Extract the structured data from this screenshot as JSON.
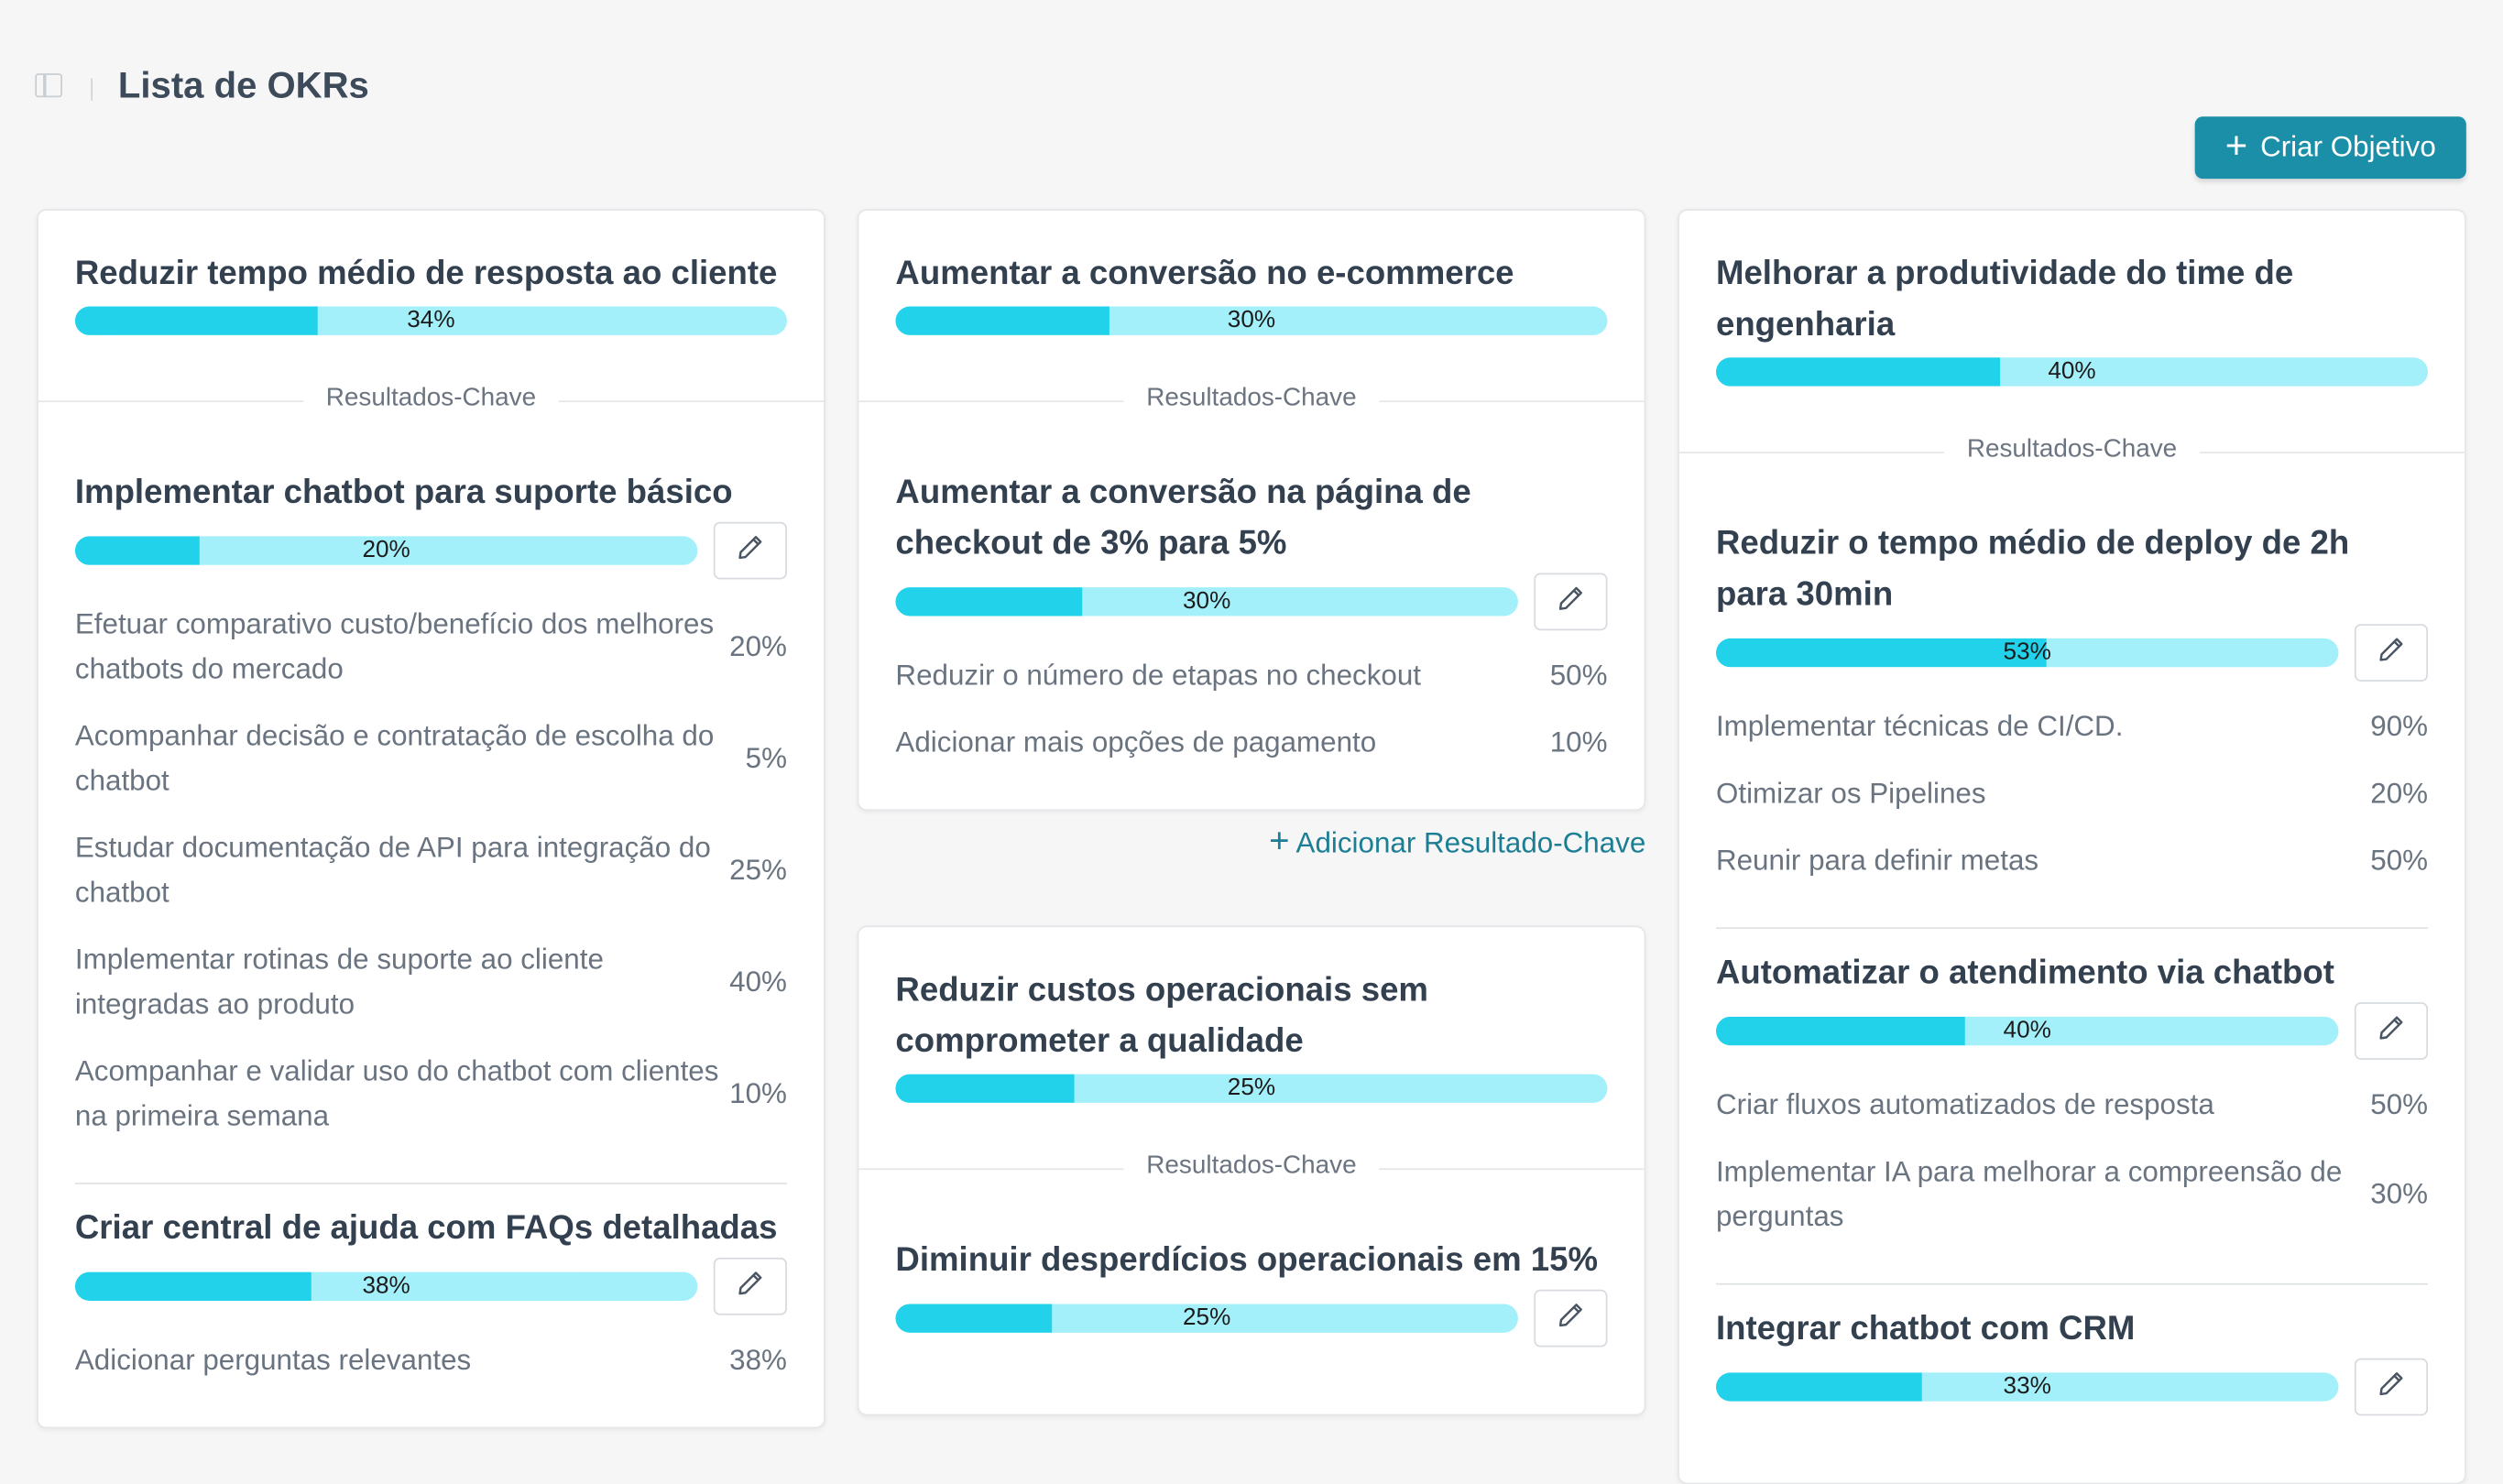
{
  "header": {
    "title": "Lista de OKRs",
    "create_button": "Criar Objetivo"
  },
  "key_results_label": "Resultados-Chave",
  "add_kr_label": "Adicionar Resultado-Chave",
  "colors": {
    "accent": "#1b8fa7",
    "bar_fill": "#22d2ea",
    "bar_track": "#a4f0fa"
  },
  "columns": [
    {
      "objectives": [
        {
          "title": "Reduzir tempo médio de resposta ao cliente",
          "progress": 34,
          "progress_label": "34%",
          "key_results": [
            {
              "title": "Implementar chatbot para suporte básico",
              "progress": 20,
              "progress_label": "20%",
              "tasks": [
                {
                  "text": "Efetuar comparativo custo/benefício dos melhores chatbots do mercado",
                  "percent": "20%"
                },
                {
                  "text": "Acompanhar decisão e contratação de escolha do chatbot",
                  "percent": "5%"
                },
                {
                  "text": "Estudar documentação de API para integração do chatbot",
                  "percent": "25%"
                },
                {
                  "text": "Implementar rotinas de suporte ao cliente integradas ao produto",
                  "percent": "40%"
                },
                {
                  "text": "Acompanhar e validar uso do chatbot com clientes na primeira semana",
                  "percent": "10%"
                }
              ]
            },
            {
              "title": "Criar central de ajuda com FAQs detalhadas",
              "progress": 38,
              "progress_label": "38%",
              "tasks": [
                {
                  "text": "Adicionar perguntas relevantes",
                  "percent": "38%"
                }
              ]
            }
          ]
        }
      ]
    },
    {
      "objectives": [
        {
          "title": "Aumentar a conversão no e-commerce",
          "progress": 30,
          "progress_label": "30%",
          "key_results": [
            {
              "title": "Aumentar a conversão na página de checkout de 3% para 5%",
              "progress": 30,
              "progress_label": "30%",
              "tasks": [
                {
                  "text": "Reduzir o número de etapas no checkout",
                  "percent": "50%"
                },
                {
                  "text": "Adicionar mais opções de pagamento",
                  "percent": "10%"
                }
              ]
            }
          ]
        },
        {
          "title": "Reduzir custos operacionais sem comprometer a qualidade",
          "progress": 25,
          "progress_label": "25%",
          "key_results": [
            {
              "title": "Diminuir desperdícios operacionais em 15%",
              "progress": 25,
              "progress_label": "25%",
              "tasks": []
            }
          ]
        }
      ]
    },
    {
      "objectives": [
        {
          "title": "Melhorar a produtividade do time de engenharia",
          "progress": 40,
          "progress_label": "40%",
          "key_results": [
            {
              "title": "Reduzir o tempo médio de deploy de 2h para 30min",
              "progress": 53,
              "progress_label": "53%",
              "tasks": [
                {
                  "text": "Implementar técnicas de CI/CD.",
                  "percent": "90%"
                },
                {
                  "text": "Otimizar os Pipelines",
                  "percent": "20%"
                },
                {
                  "text": "Reunir para definir metas",
                  "percent": "50%"
                }
              ]
            },
            {
              "title": "Automatizar o atendimento via chatbot",
              "progress": 40,
              "progress_label": "40%",
              "tasks": [
                {
                  "text": "Criar fluxos automatizados de resposta",
                  "percent": "50%"
                },
                {
                  "text": "Implementar IA para melhorar a compreensão de perguntas",
                  "percent": "30%"
                }
              ]
            },
            {
              "title": "Integrar chatbot com CRM",
              "progress": 33,
              "progress_label": "33%",
              "tasks": []
            }
          ]
        }
      ]
    }
  ]
}
